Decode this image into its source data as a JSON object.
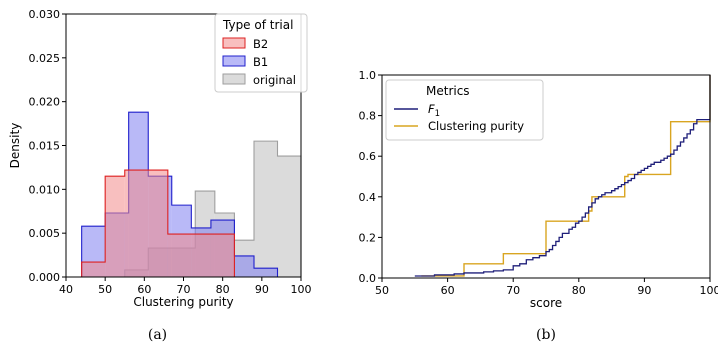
{
  "chart_data": [
    {
      "type": "histogram",
      "caption": "(a)",
      "xlabel": "Clustering purity",
      "ylabel": "Density",
      "xlim": [
        40,
        100
      ],
      "ylim": [
        0,
        0.03
      ],
      "xticks": [
        "40",
        "50",
        "60",
        "70",
        "80",
        "90",
        "100"
      ],
      "yticks": [
        "0.000",
        "0.005",
        "0.010",
        "0.015",
        "0.020",
        "0.025",
        "0.030"
      ],
      "legend": {
        "title": "Type of trial",
        "placement": "top-right"
      },
      "series": [
        {
          "name": "original",
          "fill": "#d9d9d9",
          "stroke": "#9e9e9e",
          "edges": [
            55,
            61,
            67,
            73,
            78,
            83,
            88,
            94,
            100
          ],
          "values": [
            0.0008,
            0.0033,
            0.0033,
            0.0098,
            0.0073,
            0.0042,
            0.0155,
            0.0138
          ]
        },
        {
          "name": "B1",
          "fill": "#8080f0",
          "stroke": "#2020cc",
          "edges": [
            44,
            50,
            56,
            61,
            67,
            72,
            77,
            83,
            88,
            94
          ],
          "values": [
            0.0058,
            0.0073,
            0.0188,
            0.0115,
            0.0082,
            0.0056,
            0.0065,
            0.0024,
            0.001
          ]
        },
        {
          "name": "B2",
          "fill": "#f28b8b",
          "stroke": "#dd2020",
          "edges": [
            44,
            50,
            55,
            61,
            66,
            72,
            77,
            83
          ],
          "values": [
            0.0017,
            0.0115,
            0.0122,
            0.0122,
            0.0049,
            0.0049,
            0.0049
          ]
        }
      ]
    },
    {
      "type": "line",
      "subtype": "ecdf-step",
      "caption": "(b)",
      "xlabel": "score",
      "ylabel": "",
      "xlim": [
        50,
        100
      ],
      "ylim": [
        0,
        1
      ],
      "xticks": [
        "50",
        "60",
        "70",
        "80",
        "90",
        "100"
      ],
      "yticks": [
        "0.0",
        "0.2",
        "0.4",
        "0.6",
        "0.8",
        "1.0"
      ],
      "legend": {
        "title": "Metrics",
        "placement": "top-left"
      },
      "series": [
        {
          "name": "F",
          "name_sub": "1",
          "color": "#1f1f7a",
          "x": [
            55,
            56.5,
            58,
            59.5,
            61,
            62.5,
            64,
            65.5,
            67,
            68.5,
            70,
            71,
            72,
            73,
            74,
            75,
            75.5,
            76,
            76.5,
            77,
            77.5,
            78,
            78.5,
            79,
            79.5,
            80,
            80.5,
            81,
            81.5,
            82,
            82.5,
            83,
            83.5,
            84,
            84.5,
            85,
            85.5,
            86,
            86.5,
            87,
            87.5,
            88,
            88.5,
            89,
            89.5,
            90,
            90.5,
            91,
            91.5,
            92,
            92.5,
            93,
            93.5,
            94,
            94.5,
            95,
            95.5,
            96,
            96.5,
            97,
            97.5,
            98,
            100
          ],
          "y": [
            0.01,
            0.01,
            0.015,
            0.015,
            0.02,
            0.025,
            0.025,
            0.03,
            0.035,
            0.04,
            0.06,
            0.07,
            0.09,
            0.1,
            0.11,
            0.13,
            0.14,
            0.16,
            0.18,
            0.2,
            0.22,
            0.22,
            0.24,
            0.25,
            0.27,
            0.28,
            0.3,
            0.32,
            0.35,
            0.37,
            0.39,
            0.4,
            0.41,
            0.42,
            0.42,
            0.43,
            0.44,
            0.45,
            0.46,
            0.47,
            0.48,
            0.49,
            0.51,
            0.52,
            0.53,
            0.54,
            0.55,
            0.56,
            0.57,
            0.57,
            0.58,
            0.59,
            0.6,
            0.61,
            0.63,
            0.65,
            0.67,
            0.69,
            0.71,
            0.73,
            0.76,
            0.78,
            1.0
          ]
        },
        {
          "name": "Clustering purity",
          "color": "#d9a521",
          "x": [
            56,
            62.5,
            68.5,
            75,
            81,
            81.5,
            82,
            87,
            87.5,
            94,
            100
          ],
          "y": [
            0.01,
            0.07,
            0.12,
            0.28,
            0.28,
            0.33,
            0.4,
            0.5,
            0.51,
            0.77,
            1.0
          ]
        }
      ]
    }
  ]
}
